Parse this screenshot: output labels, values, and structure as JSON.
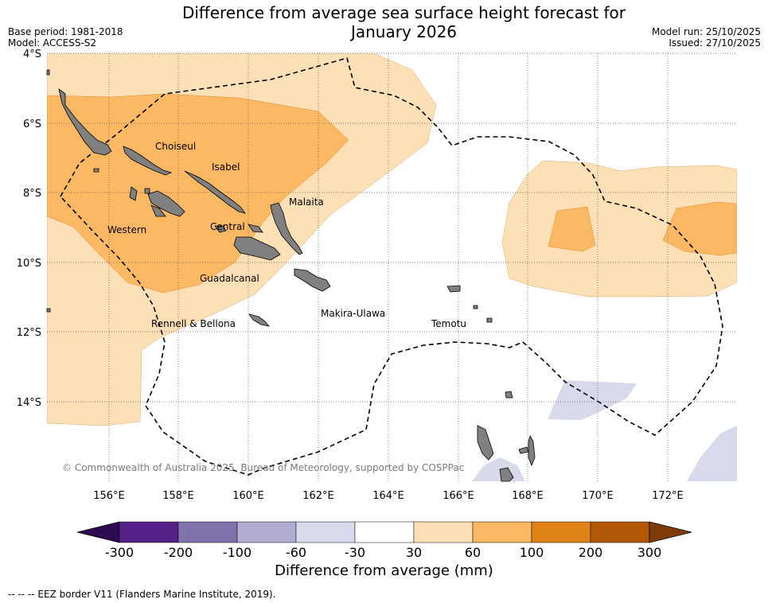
{
  "header": {
    "title_line1": "Difference from average sea surface height forecast for",
    "title_line2": "January 2026",
    "base_period": "Base period: 1981-2018",
    "model": "Model: ACCESS-S2",
    "model_run": "Model run: 25/10/2025",
    "issued": "Issued: 27/10/2025"
  },
  "map": {
    "lat_labels": [
      "4°S",
      "6°S",
      "8°S",
      "10°S",
      "12°S",
      "14°S"
    ],
    "lon_labels": [
      "156°E",
      "158°E",
      "160°E",
      "162°E",
      "164°E",
      "166°E",
      "168°E",
      "170°E",
      "172°E"
    ],
    "provinces": [
      "Choiseul",
      "Isabel",
      "Malaita",
      "Western",
      "Central",
      "Guadalcanal",
      "Makira-Ulawa",
      "Rennell & Bellona",
      "Temotu"
    ],
    "copyright": "© Commonwealth of Australia 2025, Bureau of Meteorology, supported by COSPPac"
  },
  "colorbar": {
    "title": "Difference from average (mm)",
    "tick_labels": [
      "-300",
      "-200",
      "-100",
      "-60",
      "-30",
      "30",
      "60",
      "100",
      "200",
      "300"
    ],
    "colors": {
      "below_min": "#2d0b52",
      "neg300_200": "#542188",
      "neg200_100": "#8073ac",
      "neg100_60": "#b2abd2",
      "neg60_30": "#d8daeb",
      "neutral": "#ffffff",
      "pos30_60": "#fee0b6",
      "pos60_100": "#fdb863",
      "pos100_200": "#e08214",
      "pos200_300": "#b35806",
      "above_max": "#7f3b08"
    }
  },
  "legend": {
    "eez_note": "--  --  -- EEZ border V11 (Flanders Marine Institute, 2019)."
  }
}
